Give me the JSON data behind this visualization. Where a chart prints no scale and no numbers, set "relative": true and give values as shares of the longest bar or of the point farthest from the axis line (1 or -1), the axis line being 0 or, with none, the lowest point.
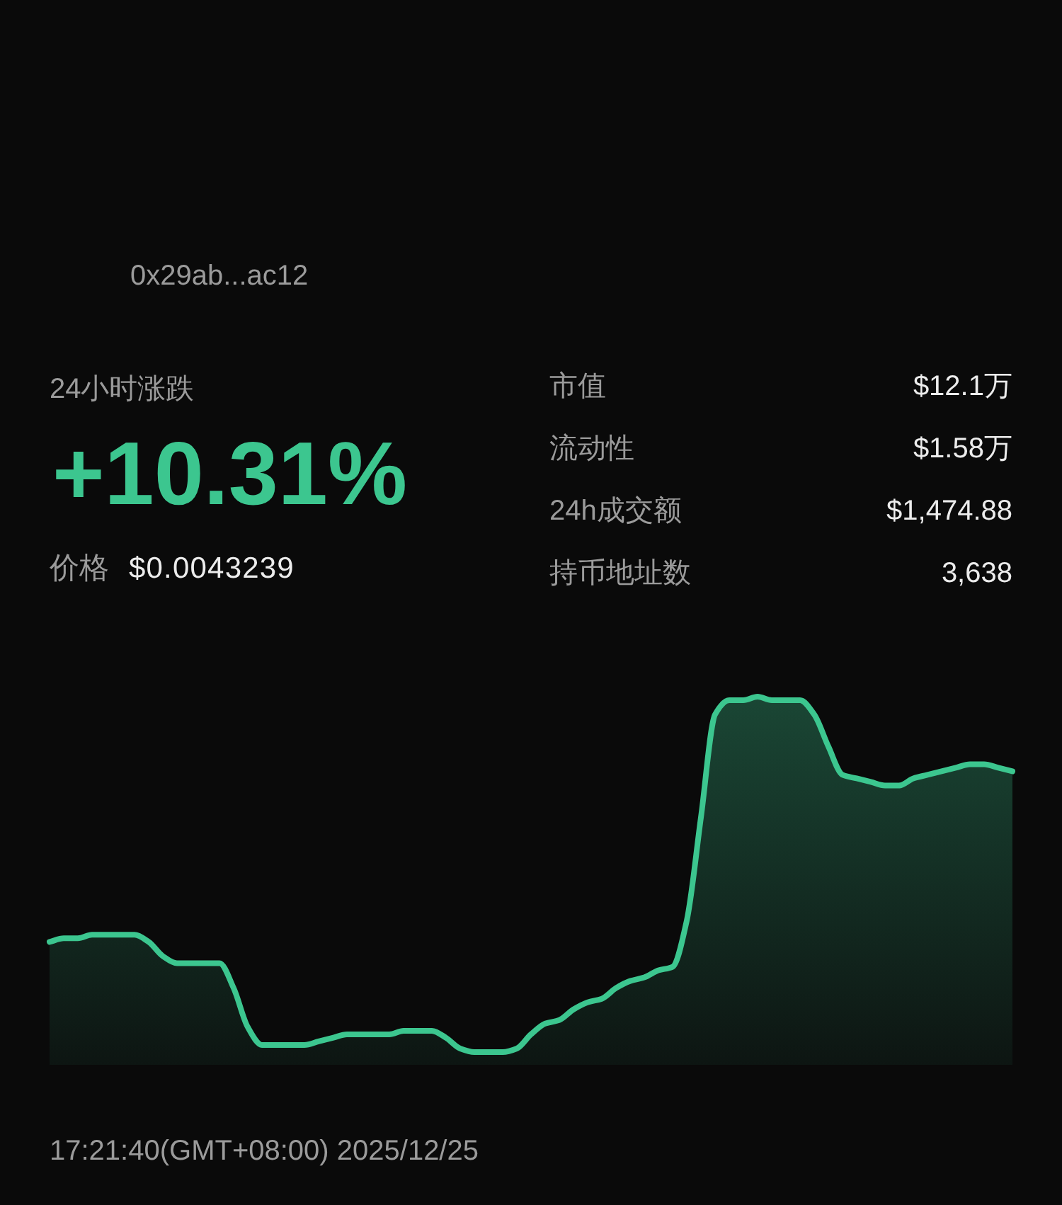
{
  "chart_data": {
    "type": "area",
    "relative": true,
    "color": "#3cc68f",
    "categories": [
      null,
      null,
      null,
      null,
      null,
      null,
      null,
      null,
      null,
      null,
      null,
      null,
      null,
      null,
      null,
      null,
      null,
      null,
      null,
      null,
      null,
      null,
      null,
      null,
      null,
      null,
      null,
      null,
      null,
      null,
      null,
      null,
      null,
      null,
      null,
      null,
      null,
      null,
      null,
      null,
      null,
      null,
      null,
      null,
      null,
      null,
      null,
      null,
      null,
      null,
      null,
      null,
      null,
      null,
      null,
      null,
      null,
      null,
      null,
      null,
      null,
      null,
      null,
      null,
      null,
      null,
      null,
      null,
      null
    ],
    "values": [
      0.31,
      0.32,
      0.32,
      0.33,
      0.33,
      0.33,
      0.33,
      0.31,
      0.27,
      0.25,
      0.25,
      0.25,
      0.25,
      0.18,
      0.07,
      0.02,
      0.02,
      0.02,
      0.02,
      0.03,
      0.04,
      0.05,
      0.05,
      0.05,
      0.05,
      0.06,
      0.06,
      0.06,
      0.04,
      0.01,
      0,
      0,
      0,
      0.01,
      0.05,
      0.08,
      0.09,
      0.12,
      0.14,
      0.15,
      0.18,
      0.2,
      0.21,
      0.23,
      0.24,
      0.37,
      0.66,
      0.95,
      0.99,
      0.99,
      1,
      0.99,
      0.99,
      0.99,
      0.95,
      0.86,
      0.78,
      0.77,
      0.76,
      0.75,
      0.75,
      0.77,
      0.78,
      0.79,
      0.8,
      0.81,
      0.81,
      0.8,
      0.79
    ],
    "annotations": [
      "0x29ab...ac12",
      "24小时涨跌",
      "+10.31%",
      "价格",
      "$0.0043239",
      "市值",
      "$12.1万",
      "流动性",
      "$1.58万",
      "24h成交额",
      "$1,474.88",
      "持币地址数",
      "3,638",
      "17:21:40(GMT+08:00) 2025/12/25"
    ]
  }
}
